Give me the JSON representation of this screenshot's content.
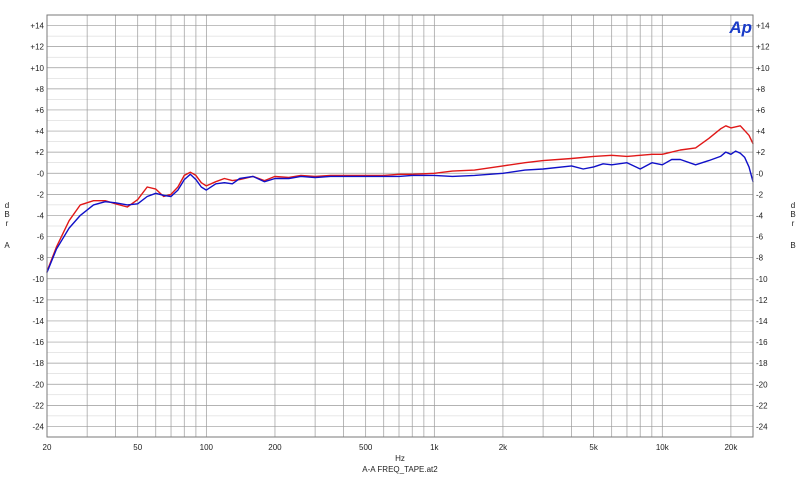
{
  "chart_data": {
    "type": "line",
    "title": "",
    "logo_text": "Ap",
    "xlabel": "Hz",
    "caption": "A-A FREQ_TAPE.at2",
    "ylabel_left": [
      "d",
      "B",
      "r",
      "A"
    ],
    "ylabel_right": [
      "d",
      "B",
      "r",
      "B"
    ],
    "x_scale": "log",
    "xlim": [
      20,
      25000
    ],
    "ylim": [
      -25,
      15
    ],
    "grid": true,
    "x_tick_labels": [
      {
        "value": 20,
        "label": "20"
      },
      {
        "value": 50,
        "label": "50"
      },
      {
        "value": 100,
        "label": "100"
      },
      {
        "value": 200,
        "label": "200"
      },
      {
        "value": 500,
        "label": "500"
      },
      {
        "value": 1000,
        "label": "1k"
      },
      {
        "value": 2000,
        "label": "2k"
      },
      {
        "value": 5000,
        "label": "5k"
      },
      {
        "value": 10000,
        "label": "10k"
      },
      {
        "value": 20000,
        "label": "20k"
      }
    ],
    "y_tick_labels": [
      {
        "value": 14,
        "label": "+14"
      },
      {
        "value": 12,
        "label": "+12"
      },
      {
        "value": 10,
        "label": "+10"
      },
      {
        "value": 8,
        "label": "+8"
      },
      {
        "value": 6,
        "label": "+6"
      },
      {
        "value": 4,
        "label": "+4"
      },
      {
        "value": 2,
        "label": "+2"
      },
      {
        "value": 0,
        "label": "-0"
      },
      {
        "value": -2,
        "label": "-2"
      },
      {
        "value": -4,
        "label": "-4"
      },
      {
        "value": -6,
        "label": "-6"
      },
      {
        "value": -8,
        "label": "-8"
      },
      {
        "value": -10,
        "label": "-10"
      },
      {
        "value": -12,
        "label": "-12"
      },
      {
        "value": -14,
        "label": "-14"
      },
      {
        "value": -16,
        "label": "-16"
      },
      {
        "value": -18,
        "label": "-18"
      },
      {
        "value": -20,
        "label": "-20"
      },
      {
        "value": -22,
        "label": "-22"
      },
      {
        "value": -24,
        "label": "-24"
      }
    ],
    "colors": {
      "red": "#e01818",
      "blue": "#1010c8",
      "grid": "#9a9a9a",
      "frame": "#7a7a7a"
    },
    "series": [
      {
        "color": "#e01818",
        "x": [
          20,
          22,
          25,
          28,
          32,
          36,
          40,
          45,
          50,
          55,
          60,
          65,
          70,
          75,
          80,
          85,
          90,
          95,
          100,
          110,
          120,
          130,
          140,
          160,
          180,
          200,
          230,
          260,
          300,
          350,
          400,
          500,
          600,
          700,
          800,
          1000,
          1200,
          1500,
          2000,
          2500,
          3000,
          4000,
          5000,
          6000,
          7000,
          8000,
          9000,
          10000,
          11000,
          12000,
          14000,
          16000,
          18000,
          19000,
          20000,
          22000,
          24000,
          25000
        ],
        "y": [
          -9.3,
          -7.0,
          -4.5,
          -3.0,
          -2.6,
          -2.6,
          -2.9,
          -3.2,
          -2.5,
          -1.3,
          -1.5,
          -2.2,
          -2.0,
          -1.3,
          -0.2,
          0.1,
          -0.2,
          -0.9,
          -1.2,
          -0.8,
          -0.5,
          -0.7,
          -0.6,
          -0.3,
          -0.7,
          -0.3,
          -0.4,
          -0.2,
          -0.3,
          -0.2,
          -0.2,
          -0.2,
          -0.2,
          -0.1,
          -0.1,
          0.0,
          0.2,
          0.3,
          0.7,
          1.0,
          1.2,
          1.4,
          1.6,
          1.7,
          1.6,
          1.7,
          1.8,
          1.8,
          2.0,
          2.2,
          2.4,
          3.3,
          4.2,
          4.5,
          4.3,
          4.5,
          3.6,
          2.8
        ]
      },
      {
        "color": "#1010c8",
        "x": [
          20,
          22,
          25,
          28,
          32,
          36,
          40,
          45,
          50,
          55,
          60,
          65,
          70,
          75,
          80,
          85,
          90,
          95,
          100,
          110,
          120,
          130,
          140,
          160,
          180,
          200,
          230,
          260,
          300,
          350,
          400,
          500,
          600,
          700,
          800,
          1000,
          1200,
          1500,
          2000,
          2500,
          3000,
          4000,
          4500,
          5000,
          5500,
          6000,
          7000,
          8000,
          9000,
          10000,
          11000,
          12000,
          14000,
          16000,
          18000,
          19000,
          20000,
          21000,
          22000,
          23000,
          24000,
          25000
        ],
        "y": [
          -9.4,
          -7.2,
          -5.2,
          -4.0,
          -3.0,
          -2.7,
          -2.8,
          -3.0,
          -2.9,
          -2.2,
          -1.9,
          -2.1,
          -2.2,
          -1.6,
          -0.6,
          -0.1,
          -0.6,
          -1.3,
          -1.6,
          -1.0,
          -0.9,
          -1.0,
          -0.5,
          -0.3,
          -0.8,
          -0.5,
          -0.5,
          -0.3,
          -0.4,
          -0.3,
          -0.3,
          -0.3,
          -0.3,
          -0.3,
          -0.2,
          -0.2,
          -0.3,
          -0.2,
          0.0,
          0.3,
          0.4,
          0.7,
          0.4,
          0.6,
          0.9,
          0.8,
          1.0,
          0.4,
          1.0,
          0.8,
          1.3,
          1.3,
          0.8,
          1.2,
          1.6,
          2.0,
          1.8,
          2.1,
          1.9,
          1.5,
          0.6,
          -0.8
        ]
      }
    ]
  }
}
